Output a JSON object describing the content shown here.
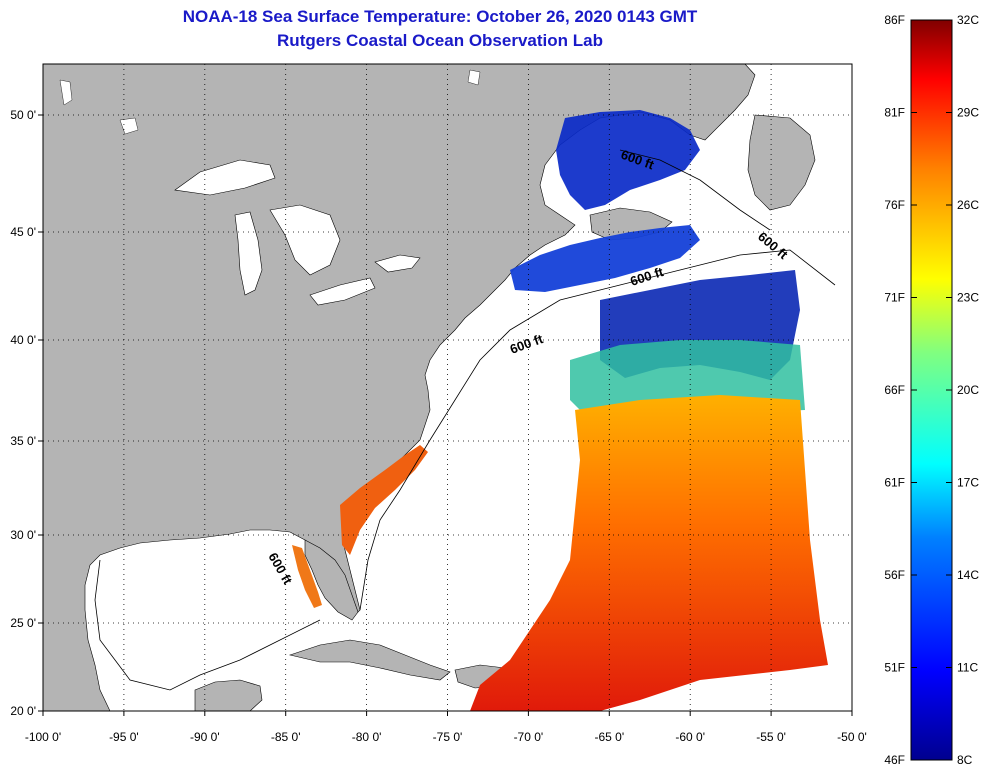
{
  "header": {
    "title": "NOAA-18 Sea Surface Temperature:  October 26, 2020 0143 GMT",
    "subtitle": "Rutgers Coastal Ocean Observation Lab"
  },
  "map": {
    "x_ticks": [
      {
        "value": -100,
        "label": "-100 0'"
      },
      {
        "value": -95,
        "label": "-95 0'"
      },
      {
        "value": -90,
        "label": "-90 0'"
      },
      {
        "value": -85,
        "label": "-85 0'"
      },
      {
        "value": -80,
        "label": "-80 0'"
      },
      {
        "value": -75,
        "label": "-75 0'"
      },
      {
        "value": -70,
        "label": "-70 0'"
      },
      {
        "value": -65,
        "label": "-65 0'"
      },
      {
        "value": -60,
        "label": "-60 0'"
      },
      {
        "value": -55,
        "label": "-55 0'"
      },
      {
        "value": -50,
        "label": "-50 0'"
      }
    ],
    "y_ticks": [
      {
        "value": 50,
        "label": "50 0'"
      },
      {
        "value": 45,
        "label": "45 0'"
      },
      {
        "value": 40,
        "label": "40 0'"
      },
      {
        "value": 35,
        "label": "35 0'"
      },
      {
        "value": 30,
        "label": "30 0'"
      },
      {
        "value": 25,
        "label": "25 0'"
      },
      {
        "value": 20,
        "label": "20 0'"
      }
    ],
    "contour_labels": [
      "600 ft",
      "600 ft",
      "600 ft",
      "600 ft",
      "600 ft"
    ],
    "colors": {
      "land": "#b4b4b4",
      "water_no_data": "#ffffff",
      "cold": "#0a28c8",
      "warm": "#e61e0a",
      "title": "#1a1ac8"
    }
  },
  "colorbar": {
    "celsius_labels": [
      "32C",
      "29C",
      "26C",
      "23C",
      "20C",
      "17C",
      "14C",
      "11C",
      "8C"
    ],
    "fahrenheit_labels": [
      "86F",
      "81F",
      "76F",
      "71F",
      "66F",
      "61F",
      "56F",
      "51F",
      "46F"
    ],
    "celsius_values": [
      32,
      29,
      26,
      23,
      20,
      17,
      14,
      11,
      8
    ],
    "fahrenheit_values": [
      86,
      81,
      76,
      71,
      66,
      61,
      56,
      51,
      46
    ],
    "range_c": [
      8,
      32
    ],
    "range_f": [
      46,
      86
    ]
  }
}
